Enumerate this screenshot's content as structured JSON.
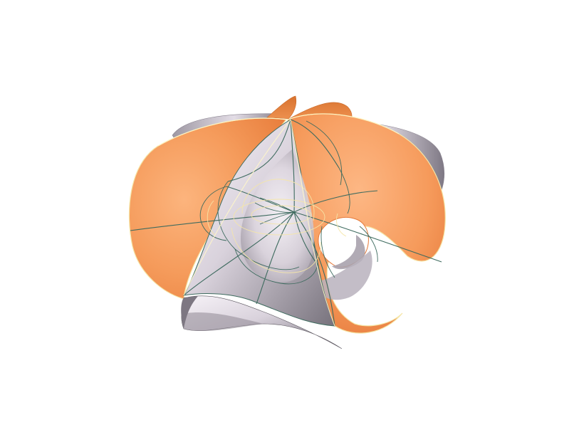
{
  "figure": {
    "colors": {
      "background": "#ffffff",
      "orange_surface": "#f59a5c",
      "orange_surface_light": "#fbb27b",
      "orange_surface_dark": "#e77a39",
      "gray_surface": "#d9d4de",
      "gray_surface_shadow": "#8b8592",
      "gray_surface_light": "#f6f2f7",
      "wire_line": "#3e6b5f",
      "edge_highlight": "#f5e6a8"
    }
  }
}
